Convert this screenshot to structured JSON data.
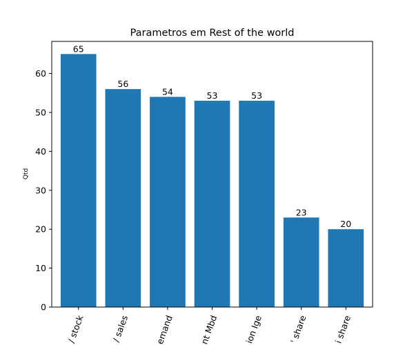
{
  "chart_data": {
    "type": "bar",
    "title": "Parametros em Rest of the world",
    "xlabel": "",
    "ylabel": "Qtd",
    "categories": [
      "/ stock",
      "/ sales",
      "emand",
      "nt Mbd",
      "ion Ige",
      "' share",
      "i share"
    ],
    "values": [
      65,
      56,
      54,
      53,
      53,
      23,
      20
    ],
    "ylim": [
      0,
      68.25
    ],
    "yticks": [
      0,
      10,
      20,
      30,
      40,
      50,
      60
    ],
    "bar_color": "#1f77b4",
    "grid": false,
    "legend": "none",
    "value_labels": true
  }
}
